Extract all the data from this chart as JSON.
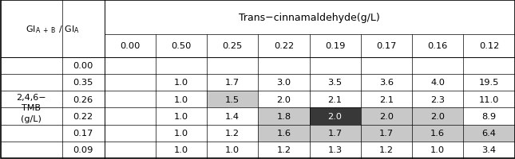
{
  "title": "Trans−cinnamaldehyde(g/L)",
  "col_headers": [
    "0.00",
    "0.50",
    "0.25",
    "0.22",
    "0.19",
    "0.17",
    "0.16",
    "0.12"
  ],
  "row_label_group": "2,4,6−\nTMB\n(g/L)",
  "row_headers": [
    "0.00",
    "0.35",
    "0.26",
    "0.22",
    "0.17",
    "0.09"
  ],
  "table_data": [
    [
      "",
      "",
      "",
      "",
      "",
      "",
      "",
      ""
    ],
    [
      "",
      "1.0",
      "1.7",
      "3.0",
      "3.5",
      "3.6",
      "4.0",
      "19.5"
    ],
    [
      "",
      "1.0",
      "1.5",
      "2.0",
      "2.1",
      "2.1",
      "2.3",
      "11.0"
    ],
    [
      "",
      "1.0",
      "1.4",
      "1.8",
      "2.0",
      "2.0",
      "2.0",
      "8.9"
    ],
    [
      "",
      "1.0",
      "1.2",
      "1.6",
      "1.7",
      "1.7",
      "1.6",
      "6.4"
    ],
    [
      "",
      "1.0",
      "1.0",
      "1.2",
      "1.3",
      "1.2",
      "1.0",
      "3.4"
    ]
  ],
  "cell_colors": {
    "2,2": "#c8c8c8",
    "3,3": "#c8c8c8",
    "3,4": "#383838",
    "3,5": "#c8c8c8",
    "3,6": "#c8c8c8",
    "4,3": "#c8c8c8",
    "4,4": "#c8c8c8",
    "4,5": "#c8c8c8",
    "4,6": "#c8c8c8",
    "4,7": "#c8c8c8"
  },
  "cell_text_colors": {
    "3,4": "#ffffff"
  },
  "fig_width": 6.45,
  "fig_height": 2.01,
  "dpi": 100
}
